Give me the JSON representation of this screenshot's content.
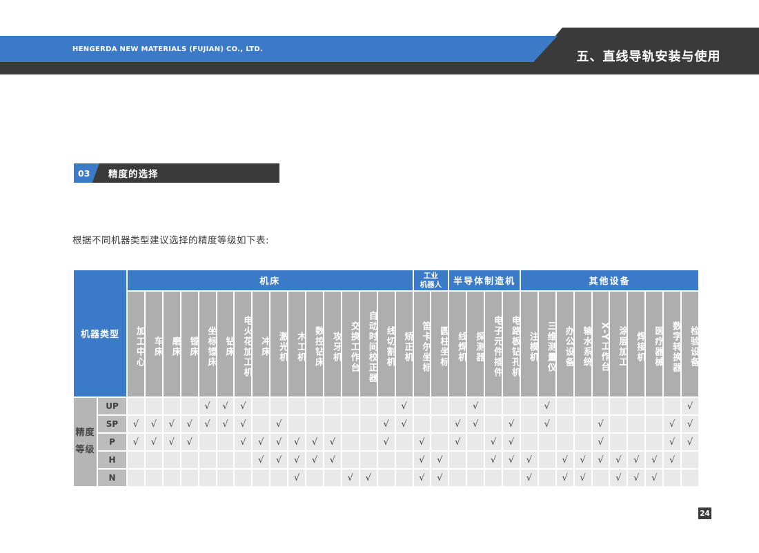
{
  "page": {
    "company": "HENGERDA NEW MATERIALS (FUJIAN) CO., LTD.",
    "chapter_title": "五、直线导轨安装与使用",
    "section_number": "03",
    "section_title": "精度的选择",
    "intro": "根据不同机器类型建议选择的精度等级如下表:",
    "page_number": "24"
  },
  "colors": {
    "accent_blue": "#3b7ac6",
    "dark": "#3a3a3a",
    "column_header_gray": "#aeaeae",
    "row_label_gray": "#bcbcbc",
    "body_cell_gray": "#e9e9e9"
  },
  "chart_data": {
    "type": "table",
    "title": "根据不同机器类型建议选择的精度等级如下表:",
    "corner_label": "机器类型",
    "row_group_label": "精度\n等级",
    "check_symbol": "√",
    "groups": [
      {
        "label": "机床",
        "span": 16
      },
      {
        "label": "工业\n机器人",
        "span": 2
      },
      {
        "label": "半导体制造机",
        "span": 4
      },
      {
        "label": "其他设备",
        "span": 10
      }
    ],
    "columns": [
      "加工中心",
      "车床",
      "磨床",
      "镗床",
      "坐标镗床",
      "钻床",
      "电火花加工机",
      "冲床",
      "激光机",
      "木工机",
      "数控钻床",
      "攻牙机",
      "交换工作台",
      "自动时间校正器",
      "线切割机",
      "矫正机",
      "笛卡尔坐标",
      "圆柱坐标",
      "线焊机",
      "探测器",
      "电子元件插件",
      "电路板钻孔机",
      "注模机",
      "三维测量仪",
      "办公设备",
      "输水系统",
      "X-Y工作台",
      "涂层加工",
      "焊接机",
      "医疗器械",
      "数字转换器",
      "检验设备"
    ],
    "rows": [
      {
        "grade": "UP",
        "checks": [
          5,
          6,
          7,
          16,
          20,
          24,
          32
        ]
      },
      {
        "grade": "SP",
        "checks": [
          1,
          2,
          3,
          4,
          5,
          6,
          7,
          9,
          15,
          16,
          19,
          20,
          22,
          24,
          27,
          31,
          32
        ]
      },
      {
        "grade": "P",
        "checks": [
          1,
          2,
          3,
          4,
          7,
          8,
          9,
          10,
          11,
          12,
          15,
          17,
          19,
          21,
          22,
          27,
          31,
          32
        ]
      },
      {
        "grade": "H",
        "checks": [
          8,
          9,
          10,
          11,
          12,
          17,
          18,
          21,
          22,
          23,
          25,
          26,
          27,
          28,
          29,
          30,
          31
        ]
      },
      {
        "grade": "N",
        "checks": [
          10,
          13,
          14,
          17,
          18,
          23,
          25,
          26,
          28,
          29,
          30
        ]
      }
    ]
  }
}
